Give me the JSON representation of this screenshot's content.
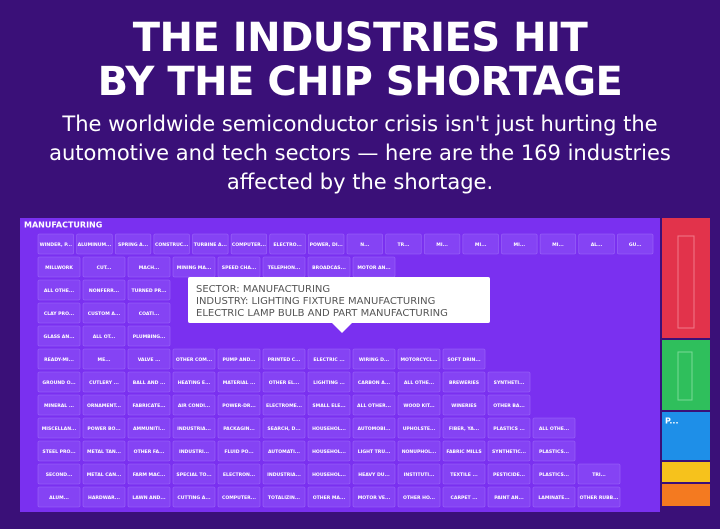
{
  "header": {
    "title": [
      "THE INDUSTRIES HIT",
      "BY THE CHIP SHORTAGE"
    ],
    "subtitle": [
      "The worldwide semiconductor crisis isn't just hurting the",
      "automotive and tech sectors — here are the 169 industries",
      "affected by the shortage."
    ]
  },
  "treemap": {
    "sector": "MANUFACTURING",
    "small_sector": "P...",
    "rows": [
      [
        "WINDER, P...",
        "ALUMINUM...",
        "SPRING A...",
        "CONSTRUC...",
        "TURBINE A...",
        "COMPUTER...",
        "ELECTRO...",
        "POWER, DI...",
        "N...",
        "TR...",
        "MI...",
        "MI...",
        "MI...",
        "MI...",
        "AL...",
        "GU..."
      ],
      [
        "MILLWORK",
        "CUT...",
        "MACH...",
        "MINING MA...",
        "SPEED CHA...",
        "TELEPHON...",
        "BROADCAS...",
        "MOTOR AN..."
      ],
      [
        "ALL OTHE...",
        "NONFERR...",
        "TURNED PR..."
      ],
      [
        "CLAY PRO...",
        "CUSTOM A...",
        "COATI..."
      ],
      [
        "GLASS AN...",
        "ALL OT...",
        "PLUMBING..."
      ],
      [
        "READY-MI...",
        "ME...",
        "VALVE ...",
        "OTHER COM...",
        "PUMP AND...",
        "PRINTED C...",
        "ELECTRIC ...",
        "WIRING D...",
        "MOTORCYCL...",
        "SOFT DRIN..."
      ],
      [
        "GROUND O...",
        "CUTLERY ...",
        "BALL AND ...",
        "HEATING E...",
        "MATERIAL ...",
        "OTHER EL...",
        "LIGHTING ...",
        "CARBON A...",
        "ALL OTHE...",
        "BREWERIES",
        "SYNTHETI..."
      ],
      [
        "MINERAL ...",
        "ORNAMENT...",
        "FABRICATE...",
        "AIR CONDI...",
        "POWER-DR...",
        "ELECTROME...",
        "SMALL ELE...",
        "ALL OTHER...",
        "WOOD KIT...",
        "WINERIES",
        "OTHER BA..."
      ],
      [
        "MISCELLAN...",
        "POWER BO...",
        "AMMUNITI...",
        "INDUSTRIA...",
        "PACKAGIN...",
        "SEARCH, D...",
        "HOUSEHOL...",
        "AUTOMOBI...",
        "UPHOLSTE...",
        "FIBER, YA...",
        "PLASTICS ...",
        "ALL OTHE..."
      ],
      [
        "STEEL PRO...",
        "METAL TAN...",
        "OTHER FA...",
        "INDUSTRI...",
        "FLUID PO...",
        "AUTOMATI...",
        "HOUSEHOL...",
        "LIGHT TRU...",
        "NONUPHOL...",
        "FABRIC MILLS",
        "SYNTHETIC...",
        "PLASTICS..."
      ],
      [
        "SECOND...",
        "METAL CAN...",
        "FARM MAC...",
        "SPECIAL TO...",
        "ELECTRON...",
        "INDUSTRIA...",
        "HOUSEHOL...",
        "HEAVY DU...",
        "INSTITUTI...",
        "TEXTILE ...",
        "PESTICIDE...",
        "PLASTICS...",
        "TRI..."
      ],
      [
        "ALUM...",
        "HARDWAR...",
        "LAWN AND...",
        "CUTTING A...",
        "COMPUTER...",
        "TOTALIZIN...",
        "OTHER MA...",
        "MOTOR VE...",
        "OTHER HO...",
        "CARPET ...",
        "PAINT AN...",
        "LAMINATE...",
        "OTHER RUBB..."
      ]
    ]
  },
  "tooltip": [
    "SECTOR: MANUFACTURING",
    "INDUSTRY: LIGHTING FIXTURE MANUFACTURING",
    "ELECTRIC LAMP BULB AND PART MANUFACTURING"
  ]
}
